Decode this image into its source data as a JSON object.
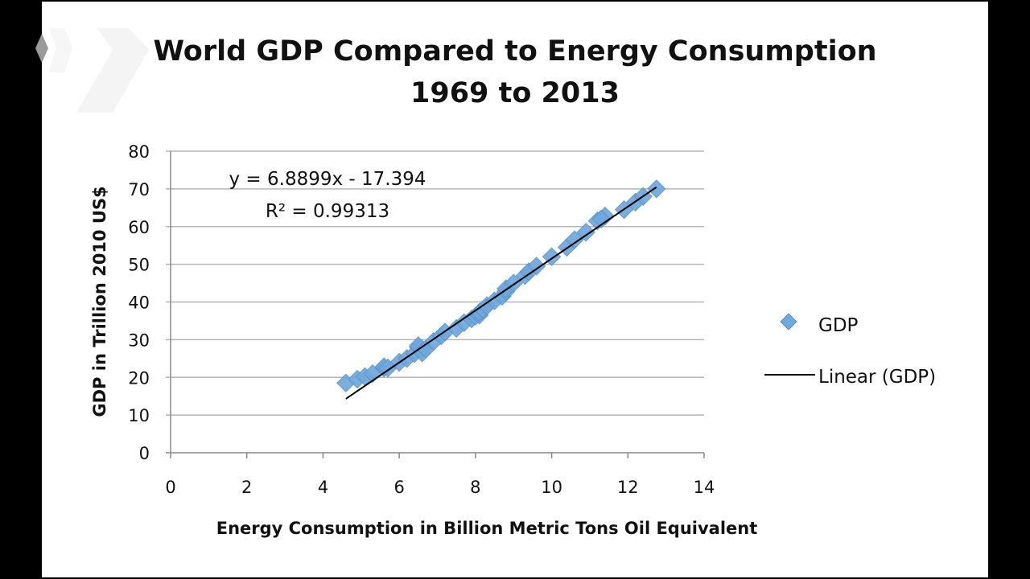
{
  "chart_data": {
    "type": "scatter",
    "title": "World GDP Compared to Energy Consumption",
    "subtitle": "1969 to 2013",
    "xlabel": "Energy Consumption in Billion Metric Tons Oil Equivalent",
    "ylabel": "GDP in Trillion 2010 US$",
    "xlim": [
      0,
      14
    ],
    "ylim": [
      0,
      80
    ],
    "xticks": [
      "0",
      "2",
      "4",
      "6",
      "8",
      "10",
      "12",
      "14"
    ],
    "yticks": [
      "0",
      "10",
      "20",
      "30",
      "40",
      "50",
      "60",
      "70",
      "80"
    ],
    "grid": "horizontal",
    "legend_position": "right",
    "series": [
      {
        "name": "GDP",
        "marker": "diamond",
        "color": "#6fa8dc",
        "x": [
          4.6,
          4.9,
          5.1,
          5.3,
          5.6,
          5.6,
          5.7,
          6.0,
          6.2,
          6.4,
          6.6,
          6.5,
          6.5,
          6.6,
          6.7,
          6.9,
          7.1,
          7.2,
          7.5,
          7.7,
          7.9,
          8.0,
          8.1,
          8.1,
          8.2,
          8.3,
          8.5,
          8.7,
          8.8,
          8.8,
          9.0,
          9.3,
          9.4,
          9.6,
          10.0,
          10.4,
          10.6,
          10.9,
          11.2,
          11.4,
          11.3,
          11.9,
          12.2,
          12.4,
          12.75
        ],
        "y": [
          18.5,
          19.5,
          20.2,
          21.0,
          22.5,
          22.8,
          22.5,
          24.0,
          25.0,
          26.3,
          27.5,
          28.0,
          28.4,
          26.5,
          27.5,
          29.5,
          31.0,
          32.0,
          33.0,
          34.5,
          35.5,
          36.2,
          36.5,
          37.2,
          38.0,
          39.0,
          40.3,
          41.5,
          42.8,
          43.5,
          45.0,
          47.0,
          48.0,
          49.5,
          52.0,
          54.5,
          56.5,
          58.5,
          61.5,
          62.8,
          62.0,
          64.5,
          66.5,
          68.0,
          70.0
        ]
      },
      {
        "name": "Linear (GDP)",
        "type": "trendline",
        "color": "#000000",
        "slope": 6.8899,
        "intercept": -17.394,
        "x_range": [
          4.6,
          12.75
        ]
      }
    ],
    "annotations": [
      "y = 6.8899x - 17.394",
      "R² = 0.99313"
    ]
  }
}
